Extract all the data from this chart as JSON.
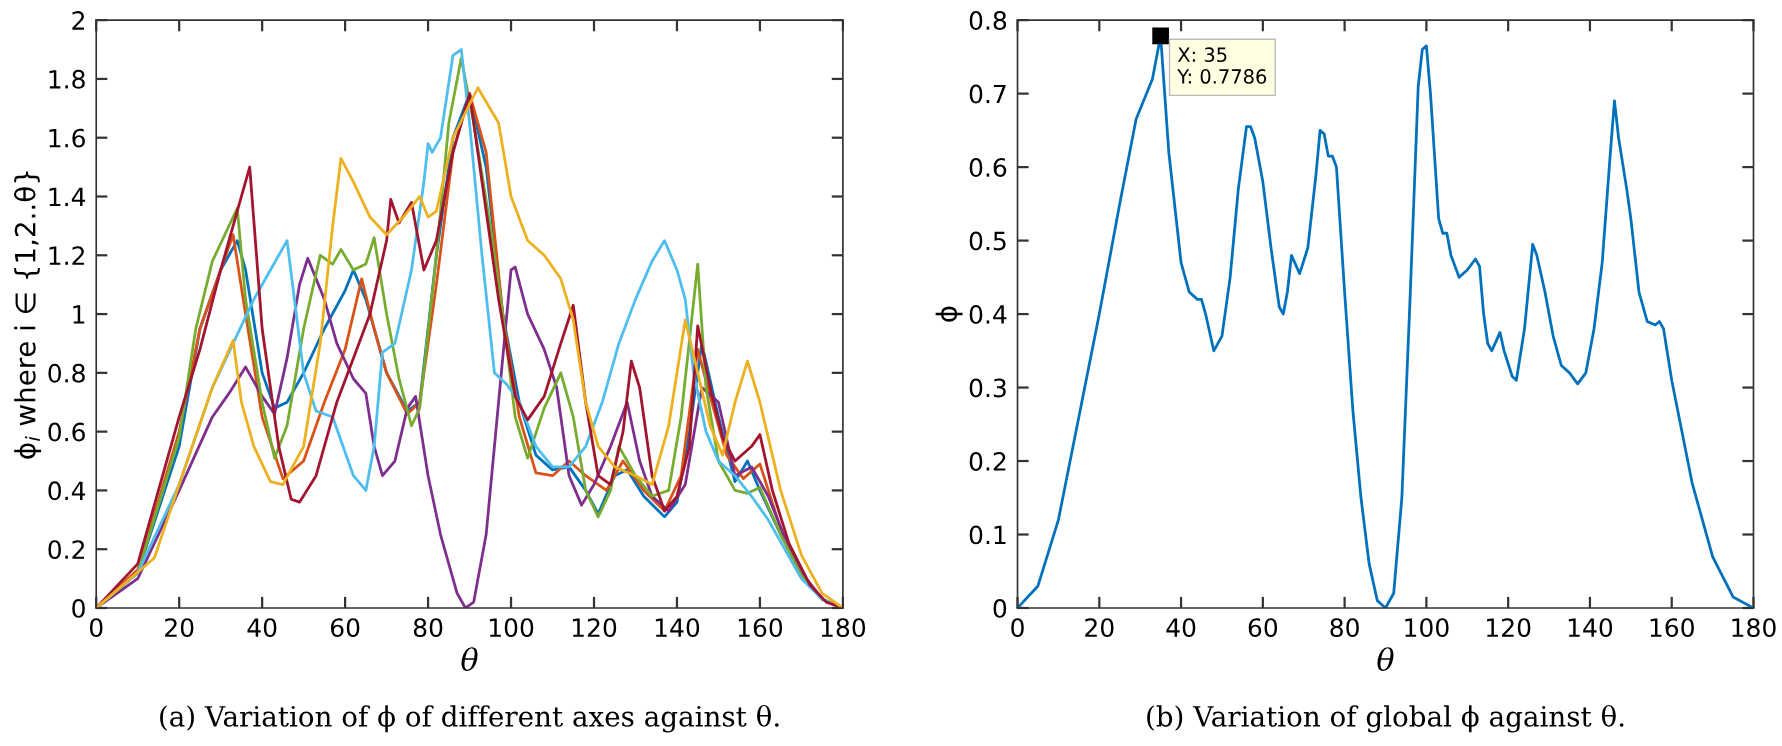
{
  "chart_data": [
    {
      "type": "line",
      "xlabel": "θ",
      "ylabel": "ϕ$_{i}$ where i ∈ {1,2..θ}",
      "xlim": [
        0,
        180
      ],
      "ylim": [
        0,
        2
      ],
      "xticks": [
        0,
        20,
        40,
        60,
        80,
        100,
        120,
        140,
        160,
        180
      ],
      "yticks": [
        0,
        0.2,
        0.4,
        0.6,
        0.8,
        1,
        1.2,
        1.4,
        1.6,
        1.8,
        2
      ],
      "grid": false,
      "annotations": [
        "(a) Variation of ϕ of different axes against θ."
      ],
      "series": [
        {
          "color": "#0072bd",
          "x": [
            0,
            10,
            20,
            25,
            30,
            34,
            36,
            40,
            43,
            46,
            50,
            55,
            60,
            62,
            65,
            70,
            75,
            78,
            82,
            86,
            90,
            94,
            98,
            102,
            106,
            110,
            114,
            118,
            121,
            125,
            128,
            132,
            137,
            140,
            143,
            146,
            150,
            154,
            157,
            160,
            165,
            170,
            175,
            180
          ],
          "values": [
            0,
            0.12,
            0.55,
            0.95,
            1.15,
            1.25,
            1.15,
            0.8,
            0.68,
            0.7,
            0.8,
            0.95,
            1.08,
            1.15,
            1.05,
            0.8,
            0.67,
            0.7,
            1.2,
            1.6,
            1.75,
            1.5,
            1.0,
            0.7,
            0.52,
            0.47,
            0.48,
            0.4,
            0.32,
            0.45,
            0.47,
            0.38,
            0.31,
            0.36,
            0.6,
            0.9,
            0.65,
            0.43,
            0.5,
            0.4,
            0.25,
            0.12,
            0.03,
            0
          ]
        },
        {
          "color": "#d95319",
          "x": [
            0,
            10,
            20,
            25,
            30,
            33,
            36,
            40,
            45,
            50,
            55,
            60,
            64,
            67,
            70,
            75,
            78,
            82,
            86,
            90,
            94,
            98,
            102,
            106,
            110,
            114,
            118,
            123,
            127,
            132,
            137,
            141,
            145,
            148,
            152,
            156,
            160,
            165,
            170,
            175,
            180
          ],
          "values": [
            0,
            0.13,
            0.6,
            0.95,
            1.15,
            1.27,
            1.0,
            0.65,
            0.44,
            0.5,
            0.7,
            0.88,
            1.12,
            0.95,
            0.8,
            0.66,
            0.7,
            1.1,
            1.55,
            1.75,
            1.55,
            1.0,
            0.65,
            0.46,
            0.45,
            0.5,
            0.45,
            0.4,
            0.5,
            0.4,
            0.33,
            0.45,
            0.88,
            0.72,
            0.52,
            0.44,
            0.49,
            0.27,
            0.12,
            0.03,
            0
          ]
        },
        {
          "color": "#7e2f8e",
          "x": [
            0,
            10,
            20,
            28,
            32,
            36,
            40,
            43,
            46,
            49,
            51,
            55,
            58,
            62,
            65,
            67,
            69,
            72,
            75,
            77,
            80,
            83,
            87,
            89,
            91,
            94,
            97,
            100,
            101,
            104,
            108,
            111,
            114,
            117,
            120,
            124,
            128,
            131,
            134,
            138,
            142,
            146,
            150,
            154,
            158,
            162,
            166,
            170,
            175,
            180
          ],
          "values": [
            0,
            0.1,
            0.4,
            0.65,
            0.73,
            0.82,
            0.72,
            0.66,
            0.85,
            1.1,
            1.19,
            1.05,
            0.9,
            0.78,
            0.73,
            0.55,
            0.45,
            0.5,
            0.68,
            0.72,
            0.45,
            0.25,
            0.05,
            0.0,
            0.02,
            0.25,
            0.7,
            1.15,
            1.16,
            1.0,
            0.88,
            0.75,
            0.45,
            0.35,
            0.42,
            0.55,
            0.7,
            0.5,
            0.38,
            0.33,
            0.42,
            0.75,
            0.7,
            0.45,
            0.48,
            0.38,
            0.24,
            0.12,
            0.03,
            0
          ]
        },
        {
          "color": "#77ac30",
          "x": [
            0,
            10,
            20,
            24,
            28,
            34,
            36,
            40,
            43,
            46,
            50,
            54,
            57,
            59,
            62,
            65,
            67,
            70,
            73,
            76,
            78,
            82,
            85,
            88,
            91,
            95,
            98,
            101,
            104,
            108,
            112,
            115,
            118,
            121,
            124,
            126,
            130,
            134,
            138,
            141,
            145,
            147,
            150,
            154,
            157,
            160,
            165,
            170,
            175,
            180
          ],
          "values": [
            0,
            0.12,
            0.58,
            0.95,
            1.18,
            1.36,
            1.05,
            0.7,
            0.51,
            0.62,
            0.95,
            1.2,
            1.17,
            1.22,
            1.15,
            1.17,
            1.26,
            1.0,
            0.78,
            0.62,
            0.68,
            1.2,
            1.65,
            1.87,
            1.65,
            1.3,
            1.0,
            0.65,
            0.51,
            0.68,
            0.8,
            0.65,
            0.4,
            0.31,
            0.4,
            0.55,
            0.45,
            0.38,
            0.4,
            0.65,
            1.17,
            0.75,
            0.5,
            0.4,
            0.39,
            0.41,
            0.25,
            0.11,
            0.03,
            0
          ]
        },
        {
          "color": "#4dbeee",
          "x": [
            0,
            10,
            20,
            28,
            33,
            38,
            42,
            46,
            50,
            53,
            57,
            62,
            65,
            67,
            69,
            72,
            76,
            79,
            80,
            81,
            83,
            86,
            88,
            90,
            93,
            96,
            99,
            102,
            106,
            110,
            114,
            118,
            122,
            126,
            130,
            134,
            137,
            140,
            142,
            144,
            147,
            150,
            154,
            158,
            162,
            166,
            170,
            175,
            180
          ],
          "values": [
            0,
            0.12,
            0.42,
            0.75,
            0.9,
            1.05,
            1.15,
            1.25,
            0.8,
            0.67,
            0.65,
            0.45,
            0.4,
            0.55,
            0.87,
            0.9,
            1.15,
            1.45,
            1.58,
            1.55,
            1.6,
            1.88,
            1.9,
            1.65,
            1.2,
            0.8,
            0.76,
            0.7,
            0.55,
            0.48,
            0.48,
            0.55,
            0.7,
            0.9,
            1.05,
            1.18,
            1.25,
            1.15,
            1.05,
            0.8,
            0.6,
            0.5,
            0.45,
            0.38,
            0.3,
            0.2,
            0.1,
            0.03,
            0
          ]
        },
        {
          "color": "#a2142f",
          "x": [
            0,
            10,
            20,
            25,
            30,
            35,
            37,
            40,
            44,
            47,
            49,
            53,
            58,
            62,
            66,
            70,
            71,
            73,
            76,
            79,
            82,
            86,
            90,
            93,
            97,
            101,
            104,
            108,
            112,
            115,
            118,
            121,
            124,
            127,
            129,
            131,
            134,
            137,
            140,
            143,
            145,
            148,
            151,
            154,
            158,
            160,
            163,
            167,
            172,
            176,
            180
          ],
          "values": [
            0,
            0.15,
            0.65,
            0.88,
            1.15,
            1.4,
            1.5,
            0.95,
            0.55,
            0.37,
            0.36,
            0.45,
            0.7,
            0.85,
            1.0,
            1.25,
            1.39,
            1.31,
            1.38,
            1.15,
            1.25,
            1.55,
            1.75,
            1.45,
            1.05,
            0.72,
            0.64,
            0.72,
            0.9,
            1.03,
            0.7,
            0.45,
            0.42,
            0.6,
            0.84,
            0.75,
            0.45,
            0.33,
            0.38,
            0.55,
            0.96,
            0.75,
            0.58,
            0.5,
            0.55,
            0.59,
            0.4,
            0.22,
            0.08,
            0.02,
            0
          ]
        },
        {
          "color": "#edb120",
          "x": [
            0,
            14,
            20,
            28,
            33,
            35,
            38,
            42,
            45,
            50,
            54,
            57,
            59,
            62,
            66,
            70,
            74,
            78,
            80,
            82,
            86,
            92,
            97,
            100,
            104,
            108,
            112,
            115,
            118,
            121,
            125,
            130,
            134,
            138,
            142,
            145,
            148,
            151,
            154,
            157,
            160,
            165,
            170,
            175,
            180
          ],
          "values": [
            0,
            0.17,
            0.42,
            0.75,
            0.91,
            0.7,
            0.55,
            0.43,
            0.42,
            0.55,
            0.9,
            1.3,
            1.53,
            1.45,
            1.33,
            1.27,
            1.33,
            1.4,
            1.33,
            1.35,
            1.6,
            1.77,
            1.65,
            1.4,
            1.25,
            1.2,
            1.12,
            0.98,
            0.7,
            0.55,
            0.48,
            0.45,
            0.42,
            0.62,
            0.98,
            0.8,
            0.62,
            0.52,
            0.7,
            0.84,
            0.7,
            0.4,
            0.18,
            0.05,
            0
          ]
        }
      ]
    },
    {
      "type": "line",
      "xlabel": "θ",
      "ylabel": "ϕ",
      "xlim": [
        0,
        180
      ],
      "ylim": [
        0,
        0.8
      ],
      "xticks": [
        0,
        20,
        40,
        60,
        80,
        100,
        120,
        140,
        160,
        180
      ],
      "yticks": [
        0,
        0.1,
        0.2,
        0.3,
        0.4,
        0.5,
        0.6,
        0.7,
        0.8
      ],
      "grid": false,
      "annotations": [
        {
          "text": "X: 35\nY: 0.7786",
          "x": 35,
          "y": 0.7786
        },
        "(b) Variation of global ϕ against θ."
      ],
      "series": [
        {
          "color": "#0072bd",
          "x": [
            0,
            5,
            10,
            15,
            20,
            25,
            29,
            33,
            35,
            37,
            40,
            42,
            44,
            45,
            46,
            48,
            50,
            52,
            54,
            56,
            57,
            58,
            60,
            62,
            64,
            65,
            66,
            67,
            69,
            71,
            73,
            74,
            75,
            76,
            77,
            78,
            80,
            82,
            84,
            86,
            88,
            90,
            92,
            94,
            96,
            98,
            99,
            100,
            101,
            103,
            104,
            105,
            106,
            108,
            110,
            112,
            113,
            114,
            115,
            116,
            118,
            119,
            121,
            122,
            124,
            126,
            127,
            129,
            131,
            133,
            135,
            137,
            139,
            141,
            143,
            145,
            146,
            147,
            149,
            150,
            152,
            154,
            156,
            157,
            158,
            160,
            165,
            170,
            175,
            180
          ],
          "values": [
            0,
            0.03,
            0.12,
            0.26,
            0.4,
            0.55,
            0.665,
            0.72,
            0.7786,
            0.62,
            0.47,
            0.43,
            0.42,
            0.42,
            0.4,
            0.35,
            0.37,
            0.45,
            0.57,
            0.655,
            0.655,
            0.64,
            0.58,
            0.49,
            0.41,
            0.4,
            0.43,
            0.48,
            0.455,
            0.49,
            0.59,
            0.65,
            0.645,
            0.615,
            0.615,
            0.6,
            0.43,
            0.27,
            0.15,
            0.06,
            0.01,
            0,
            0.02,
            0.15,
            0.42,
            0.71,
            0.76,
            0.765,
            0.7,
            0.53,
            0.51,
            0.51,
            0.48,
            0.45,
            0.46,
            0.475,
            0.465,
            0.4,
            0.36,
            0.35,
            0.375,
            0.35,
            0.315,
            0.31,
            0.38,
            0.495,
            0.48,
            0.43,
            0.37,
            0.33,
            0.32,
            0.305,
            0.32,
            0.38,
            0.47,
            0.62,
            0.69,
            0.64,
            0.57,
            0.53,
            0.43,
            0.39,
            0.385,
            0.39,
            0.38,
            0.31,
            0.17,
            0.07,
            0.015,
            0
          ]
        }
      ]
    }
  ]
}
